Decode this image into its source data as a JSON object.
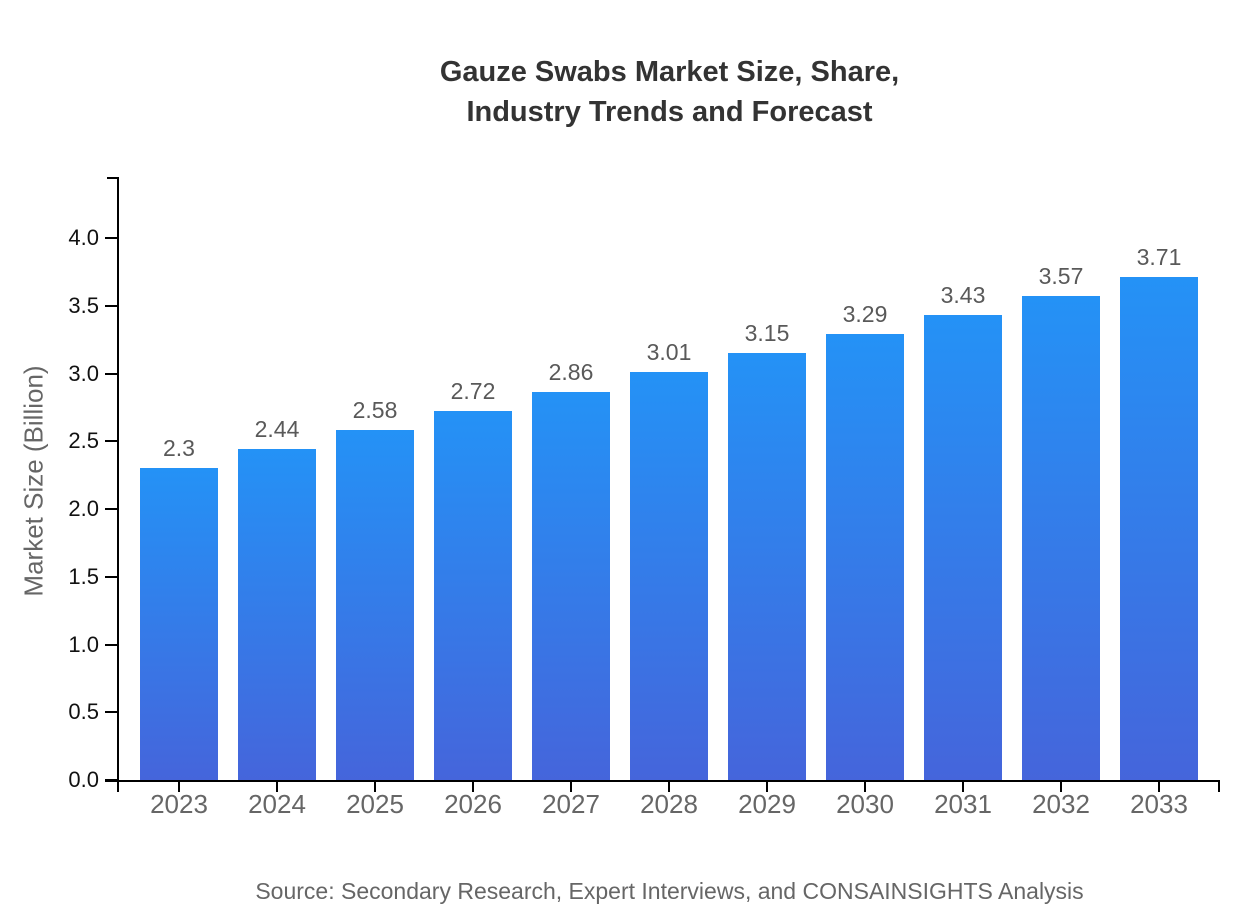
{
  "chart_data": {
    "type": "bar",
    "title": "Gauze Swabs Market Size, Share, Industry Trends and Forecast",
    "title_lines": [
      "Gauze Swabs Market Size, Share,",
      "Industry Trends and Forecast"
    ],
    "xlabel": "",
    "ylabel": "Market Size (Billion)",
    "categories": [
      "2023",
      "2024",
      "2025",
      "2026",
      "2027",
      "2028",
      "2029",
      "2030",
      "2031",
      "2032",
      "2033"
    ],
    "values": [
      2.3,
      2.44,
      2.58,
      2.72,
      2.86,
      3.01,
      3.15,
      3.29,
      3.43,
      3.57,
      3.71
    ],
    "value_labels": [
      "2.3",
      "2.44",
      "2.58",
      "2.72",
      "2.86",
      "3.01",
      "3.15",
      "3.29",
      "3.43",
      "3.57",
      "3.71"
    ],
    "ylim": [
      0,
      4.45
    ],
    "y_tick_labels": [
      "0.0",
      "0.5",
      "1.0",
      "1.5",
      "2.0",
      "2.5",
      "3.0",
      "3.5",
      "4.0"
    ],
    "y_tick_values": [
      0,
      0.5,
      1,
      1.5,
      2,
      2.5,
      3,
      3.5,
      4
    ],
    "grid": false,
    "legend": "none",
    "source": "Source: Secondary Research, Expert Interviews, and CONSAINSIGHTS Analysis",
    "colors": {
      "bar_gradient_top": "#2492F6",
      "bar_gradient_bottom": "#4565DB",
      "axis": "#000000",
      "title_text": "#333333",
      "y_tick_text": "#111111",
      "x_tick_text": "#666666",
      "value_label_text": "#595959",
      "source_text": "#666666"
    }
  }
}
